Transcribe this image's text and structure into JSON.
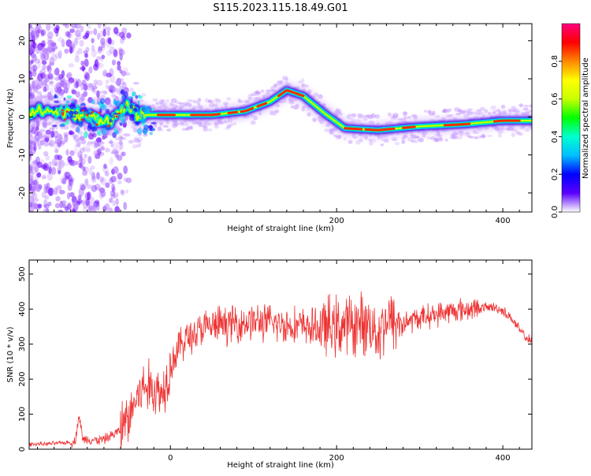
{
  "figure": {
    "title": "S115.2023.115.18.49.G01"
  },
  "chart_data": [
    {
      "type": "heatmap",
      "xlabel": "Height of straight line (km)",
      "ylabel": "Frequency (Hz)",
      "xlim": [
        -170,
        435
      ],
      "ylim": [
        -25,
        24.5
      ],
      "xticks": [
        0,
        200,
        400
      ],
      "yticks": [
        -20,
        -10,
        0,
        10,
        20
      ],
      "colorbar": {
        "label": "Normalized spectral amplitude",
        "range": [
          0,
          1
        ],
        "ticks": [
          0.0,
          0.2,
          0.4,
          0.6,
          0.8
        ],
        "tick_labels": [
          "0.0",
          "0.2",
          "0.4",
          "0.6",
          "0.8"
        ],
        "colormap": [
          "#ffffff",
          "#5b00ff",
          "#0000ff",
          "#00bfff",
          "#00ffd0",
          "#00ff00",
          "#c8ff00",
          "#ffff00",
          "#ff8800",
          "#ff0000",
          "#ff0080"
        ]
      },
      "ridge_frequency_hz": {
        "x": [
          -140,
          -100,
          -70,
          -55,
          -40,
          -20,
          0,
          50,
          90,
          120,
          140,
          160,
          185,
          210,
          250,
          300,
          350,
          400,
          435
        ],
        "y": [
          1.5,
          0,
          -1,
          3,
          0.5,
          0.5,
          0.5,
          0.5,
          1.5,
          4,
          7,
          5.5,
          1,
          -3,
          -3.5,
          -2.5,
          -2,
          -1,
          -1
        ]
      },
      "grid": false
    },
    {
      "type": "line",
      "xlabel": "Height of straight line (km)",
      "ylabel": "SNR (10 * v/v)",
      "xlim": [
        -170,
        435
      ],
      "ylim": [
        0,
        540
      ],
      "xticks": [
        0,
        200,
        400
      ],
      "yticks": [
        0,
        100,
        200,
        300,
        400,
        500
      ],
      "color": "#ee3333",
      "series": [
        {
          "x": [
            -170,
            -150,
            -130,
            -115,
            -110,
            -105,
            -100,
            -90,
            -80,
            -70,
            -60,
            -50,
            -40,
            -30,
            -20,
            -10,
            -5,
            0,
            10,
            20,
            30,
            40,
            50,
            60,
            80,
            100,
            120,
            140,
            160,
            180,
            200,
            220,
            240,
            250,
            260,
            270,
            280,
            300,
            320,
            340,
            360,
            380,
            390,
            400,
            410,
            420,
            430,
            435
          ],
          "y": [
            15,
            15,
            18,
            20,
            95,
            25,
            30,
            25,
            28,
            40,
            55,
            90,
            150,
            180,
            170,
            160,
            200,
            240,
            290,
            320,
            330,
            345,
            350,
            355,
            360,
            365,
            360,
            355,
            350,
            345,
            350,
            355,
            360,
            330,
            370,
            360,
            360,
            375,
            385,
            395,
            400,
            405,
            405,
            395,
            375,
            340,
            315,
            305
          ]
        }
      ],
      "grid": false
    }
  ]
}
